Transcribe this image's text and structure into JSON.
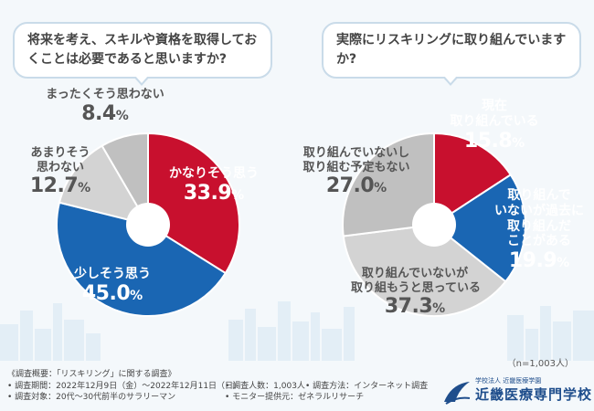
{
  "questions": {
    "left": "将来を考え、スキルや資格を取得しておくことは必要であると思いますか?",
    "right": "実際にリスキリングに取り組んでいますか?"
  },
  "chart_data": [
    {
      "type": "pie",
      "title": "将来を考え、スキルや資格を取得しておくことは必要であると思いますか?",
      "slices": [
        {
          "label": "かなりそう思う",
          "value": 33.9,
          "color": "#c8102e"
        },
        {
          "label": "少しそう思う",
          "value": 45.0,
          "color": "#1a66b3"
        },
        {
          "label": "あまりそう思わない",
          "value": 12.7,
          "color": "#d3d3d3"
        },
        {
          "label": "まったくそう思わない",
          "value": 8.4,
          "color": "#c0c0c0"
        }
      ]
    },
    {
      "type": "pie",
      "title": "実際にリスキリングに取り組んでいますか?",
      "slices": [
        {
          "label": "現在取り組んでいる",
          "value": 15.8,
          "color": "#c8102e"
        },
        {
          "label": "取り組んでいないが過去に取り組んだことがある",
          "value": 19.9,
          "color": "#1a66b3"
        },
        {
          "label": "取り組んでいないが取り組もうと思っている",
          "value": 37.3,
          "color": "#d3d3d3"
        },
        {
          "label": "取り組んでいないし取り組む予定もない",
          "value": 27.0,
          "color": "#c0c0c0"
        }
      ]
    }
  ],
  "labels": {
    "left": {
      "s1": {
        "l1": "かなりそう思う",
        "v": "33.9",
        "u": "%"
      },
      "s2": {
        "l1": "少しそう思う",
        "v": "45.0",
        "u": "%"
      },
      "s3": {
        "l1": "あまりそう",
        "l2": "思わない",
        "v": "12.7",
        "u": "%"
      },
      "s4": {
        "l1": "まったくそう思わない",
        "v": "8.4",
        "u": "%"
      }
    },
    "right": {
      "s1": {
        "l1": "現在",
        "l2": "取り組んでいる",
        "v": "15.8",
        "u": "%"
      },
      "s2": {
        "l1": "取り組んで",
        "l2": "いないが過去に",
        "l3": "取り組んだ",
        "l4": "ことがある",
        "v": "19.9",
        "u": "%"
      },
      "s3": {
        "l1": "取り組んでいないが",
        "l2": "取り組もうと思っている",
        "v": "37.3",
        "u": "%"
      },
      "s4": {
        "l1": "取り組んでいないし",
        "l2": "取り組む予定もない",
        "v": "27.0",
        "u": "%"
      }
    }
  },
  "sample_note": "（n=1,003人）",
  "footer": {
    "title": "《調査概要：「リスキリング」に関する調査》",
    "period": "• 調査期間：2022年12月9日（金）～2022年12月11日（日）",
    "people": "• 調査人数：1,003人",
    "method": "• 調査方法：インターネット調査",
    "target": "• 調査対象：20代～30代前半のサラリーマン",
    "provider": "• モニター提供元：ゼネラルリサーチ"
  },
  "logo": {
    "sub": "学校法人 近畿医療学園",
    "name": "近畿医療専門学校"
  }
}
